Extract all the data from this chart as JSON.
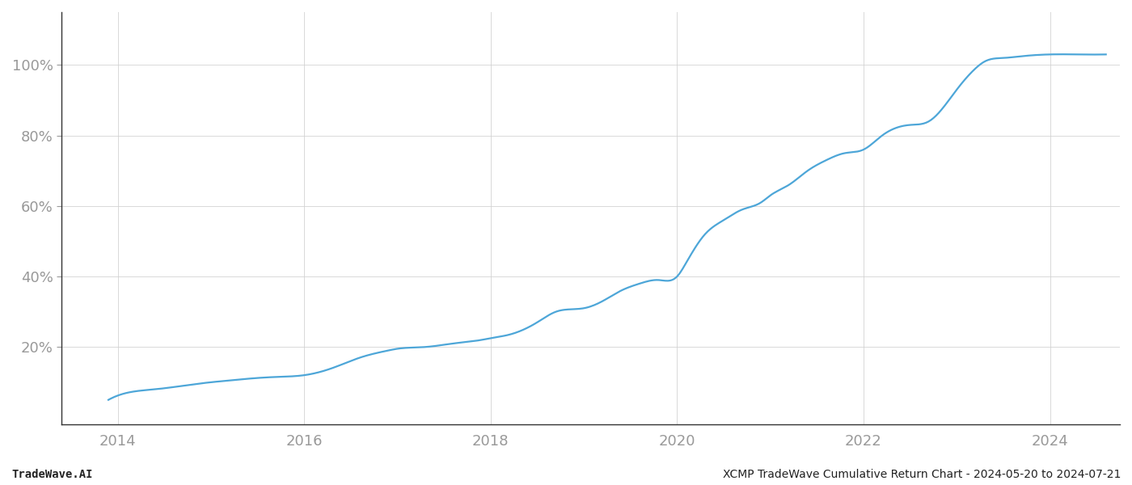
{
  "title": "",
  "footer_left": "TradeWave.AI",
  "footer_right": "XCMP TradeWave Cumulative Return Chart - 2024-05-20 to 2024-07-21",
  "line_color": "#4da6d8",
  "background_color": "#ffffff",
  "grid_color": "#d0d0d0",
  "x_years": [
    2014,
    2016,
    2018,
    2020,
    2022,
    2024
  ],
  "ytick_labels": [
    "20%",
    "40%",
    "60%",
    "80%",
    "100%"
  ],
  "ytick_values": [
    20,
    40,
    60,
    80,
    100
  ],
  "xlim": [
    2013.4,
    2024.75
  ],
  "ylim": [
    -2,
    115
  ],
  "data_x": [
    2013.9,
    2014.1,
    2014.4,
    2014.7,
    2015.0,
    2015.2,
    2015.4,
    2015.7,
    2016.0,
    2016.3,
    2016.6,
    2016.9,
    2017.0,
    2017.3,
    2017.6,
    2017.9,
    2018.0,
    2018.2,
    2018.5,
    2018.7,
    2019.0,
    2019.2,
    2019.4,
    2019.6,
    2019.8,
    2020.0,
    2020.1,
    2020.3,
    2020.5,
    2020.7,
    2020.9,
    2021.0,
    2021.2,
    2021.4,
    2021.6,
    2021.8,
    2022.0,
    2022.2,
    2022.5,
    2022.7,
    2023.0,
    2023.2,
    2023.3,
    2023.5,
    2023.7,
    2024.0,
    2024.3,
    2024.6
  ],
  "data_y": [
    5,
    7,
    8,
    9,
    10,
    10.5,
    11,
    11.5,
    12,
    14,
    17,
    19,
    19.5,
    20,
    21,
    22,
    22.5,
    23.5,
    27,
    30,
    31,
    33,
    36,
    38,
    39,
    40,
    44,
    52,
    56,
    59,
    61,
    63,
    66,
    70,
    73,
    75,
    76,
    80,
    83,
    84,
    93,
    99,
    101,
    102,
    102.5,
    103,
    103,
    103
  ],
  "line_width": 1.6,
  "tick_color": "#999999",
  "axis_color": "#333333",
  "footer_fontsize": 10,
  "tick_fontsize": 13
}
